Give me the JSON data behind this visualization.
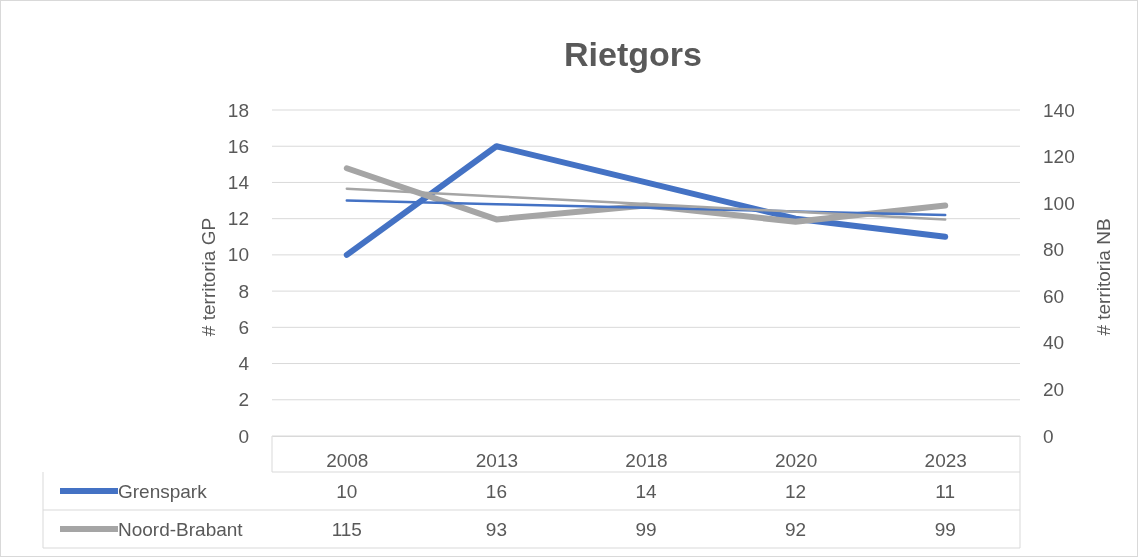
{
  "chart_data": {
    "type": "line",
    "title": "Rietgors",
    "ylabel": "# territoria GP",
    "y2label": "# territoria NB",
    "categories": [
      "2008",
      "2013",
      "2018",
      "2020",
      "2023"
    ],
    "series": [
      {
        "name": "Grenspark",
        "color": "#4472c4",
        "values": [
          10,
          16,
          14,
          12,
          11
        ],
        "value_labels": [
          "10",
          "16",
          "14",
          "12",
          "11"
        ]
      },
      {
        "name": "Noord-Brabant",
        "color": "#a5a5a5",
        "values": [
          115,
          93,
          99,
          92,
          99
        ],
        "value_labels": [
          "115",
          "93",
          "99",
          "92",
          "99"
        ],
        "axis": "y2"
      },
      {
        "type": "line",
        "color": "#4472c4",
        "values": [
          13.0,
          12.8,
          12.6,
          12.4,
          12.2
        ]
      },
      {
        "type": "line",
        "color": "#a5a5a5",
        "values": [
          106.2,
          102.9,
          99.6,
          96.3,
          93.0
        ],
        "axis": "y2"
      }
    ],
    "ylim": [
      0,
      18
    ],
    "yticks": [
      0,
      2,
      4,
      6,
      8,
      10,
      12,
      14,
      16,
      18
    ],
    "y2lim": [
      0,
      140
    ],
    "y2ticks": [
      0,
      20,
      40,
      60,
      80,
      100,
      120,
      140
    ],
    "grid": "y",
    "legend": "bottom"
  }
}
